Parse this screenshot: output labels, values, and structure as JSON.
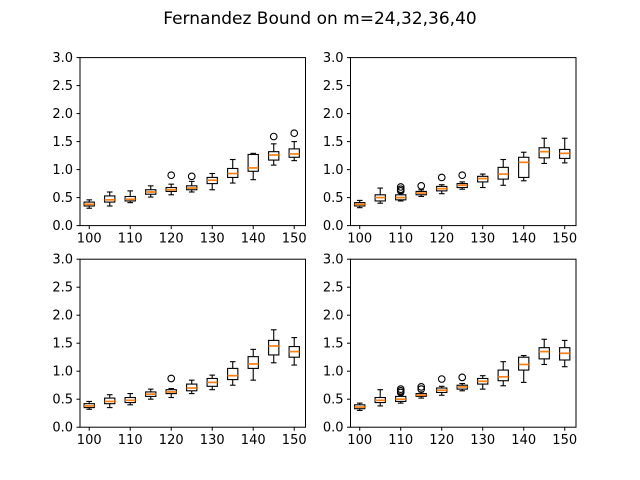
{
  "title": "Fernandez Bound on m=24,32,36,40",
  "colors": {
    "background": "#ffffff",
    "axes": "#000000",
    "box_edge": "#000000",
    "box_fill": "#ffffff",
    "median": "#ff7f0e",
    "flier_edge": "#000000"
  },
  "chart_data": [
    {
      "type": "boxplot",
      "subplot": "top-left",
      "m": 24,
      "xlim": [
        97.75,
        152.75
      ],
      "ylim": [
        0.0,
        3.0
      ],
      "x_ticks": [
        100,
        110,
        120,
        130,
        140,
        150
      ],
      "y_ticks": [
        0.0,
        0.5,
        1.0,
        1.5,
        2.0,
        2.5,
        3.0
      ],
      "box_width": 2.5,
      "boxes": [
        {
          "pos": 100,
          "whislo": 0.31,
          "q1": 0.35,
          "med": 0.38,
          "q3": 0.42,
          "whishi": 0.46,
          "fliers": []
        },
        {
          "pos": 105,
          "whislo": 0.35,
          "q1": 0.42,
          "med": 0.46,
          "q3": 0.53,
          "whishi": 0.6,
          "fliers": []
        },
        {
          "pos": 110,
          "whislo": 0.41,
          "q1": 0.44,
          "med": 0.47,
          "q3": 0.52,
          "whishi": 0.62,
          "fliers": []
        },
        {
          "pos": 115,
          "whislo": 0.51,
          "q1": 0.56,
          "med": 0.6,
          "q3": 0.64,
          "whishi": 0.71,
          "fliers": []
        },
        {
          "pos": 120,
          "whislo": 0.55,
          "q1": 0.61,
          "med": 0.64,
          "q3": 0.68,
          "whishi": 0.74,
          "fliers": [
            0.9
          ]
        },
        {
          "pos": 125,
          "whislo": 0.6,
          "q1": 0.64,
          "med": 0.67,
          "q3": 0.71,
          "whishi": 0.79,
          "fliers": [
            0.88
          ]
        },
        {
          "pos": 130,
          "whislo": 0.64,
          "q1": 0.75,
          "med": 0.81,
          "q3": 0.86,
          "whishi": 0.93,
          "fliers": []
        },
        {
          "pos": 135,
          "whislo": 0.76,
          "q1": 0.86,
          "med": 0.93,
          "q3": 1.02,
          "whishi": 1.18,
          "fliers": []
        },
        {
          "pos": 140,
          "whislo": 0.82,
          "q1": 0.97,
          "med": 1.03,
          "q3": 1.27,
          "whishi": 1.29,
          "fliers": []
        },
        {
          "pos": 145,
          "whislo": 1.08,
          "q1": 1.17,
          "med": 1.26,
          "q3": 1.32,
          "whishi": 1.46,
          "fliers": [
            1.59
          ]
        },
        {
          "pos": 150,
          "whislo": 1.16,
          "q1": 1.22,
          "med": 1.28,
          "q3": 1.37,
          "whishi": 1.5,
          "fliers": [
            1.65
          ]
        }
      ]
    },
    {
      "type": "boxplot",
      "subplot": "top-right",
      "m": 32,
      "xlim": [
        97.75,
        152.75
      ],
      "ylim": [
        0.0,
        3.0
      ],
      "x_ticks": [
        100,
        110,
        120,
        130,
        140,
        150
      ],
      "y_ticks": [
        0.0,
        0.5,
        1.0,
        1.5,
        2.0,
        2.5,
        3.0
      ],
      "box_width": 2.5,
      "boxes": [
        {
          "pos": 100,
          "whislo": 0.32,
          "q1": 0.35,
          "med": 0.38,
          "q3": 0.41,
          "whishi": 0.45,
          "fliers": []
        },
        {
          "pos": 105,
          "whislo": 0.4,
          "q1": 0.44,
          "med": 0.5,
          "q3": 0.55,
          "whishi": 0.67,
          "fliers": []
        },
        {
          "pos": 110,
          "whislo": 0.44,
          "q1": 0.46,
          "med": 0.5,
          "q3": 0.55,
          "whishi": 0.58,
          "fliers": [
            0.62,
            0.65,
            0.69
          ]
        },
        {
          "pos": 115,
          "whislo": 0.52,
          "q1": 0.55,
          "med": 0.58,
          "q3": 0.61,
          "whishi": 0.64,
          "fliers": [
            0.71
          ]
        },
        {
          "pos": 120,
          "whislo": 0.57,
          "q1": 0.62,
          "med": 0.66,
          "q3": 0.7,
          "whishi": 0.73,
          "fliers": [
            0.86
          ]
        },
        {
          "pos": 125,
          "whislo": 0.65,
          "q1": 0.68,
          "med": 0.72,
          "q3": 0.75,
          "whishi": 0.78,
          "fliers": [
            0.9
          ]
        },
        {
          "pos": 130,
          "whislo": 0.68,
          "q1": 0.78,
          "med": 0.84,
          "q3": 0.88,
          "whishi": 0.92,
          "fliers": []
        },
        {
          "pos": 135,
          "whislo": 0.72,
          "q1": 0.83,
          "med": 0.92,
          "q3": 1.04,
          "whishi": 1.18,
          "fliers": []
        },
        {
          "pos": 140,
          "whislo": 0.8,
          "q1": 0.86,
          "med": 1.13,
          "q3": 1.22,
          "whishi": 1.31,
          "fliers": []
        },
        {
          "pos": 145,
          "whislo": 1.11,
          "q1": 1.21,
          "med": 1.32,
          "q3": 1.39,
          "whishi": 1.56,
          "fliers": []
        },
        {
          "pos": 150,
          "whislo": 1.12,
          "q1": 1.2,
          "med": 1.29,
          "q3": 1.36,
          "whishi": 1.56,
          "fliers": []
        }
      ]
    },
    {
      "type": "boxplot",
      "subplot": "bottom-left",
      "m": 36,
      "xlim": [
        97.75,
        152.75
      ],
      "ylim": [
        0.0,
        3.0
      ],
      "x_ticks": [
        100,
        110,
        120,
        130,
        140,
        150
      ],
      "y_ticks": [
        0.0,
        0.5,
        1.0,
        1.5,
        2.0,
        2.5,
        3.0
      ],
      "box_width": 2.5,
      "boxes": [
        {
          "pos": 100,
          "whislo": 0.32,
          "q1": 0.35,
          "med": 0.38,
          "q3": 0.42,
          "whishi": 0.46,
          "fliers": []
        },
        {
          "pos": 105,
          "whislo": 0.35,
          "q1": 0.42,
          "med": 0.46,
          "q3": 0.52,
          "whishi": 0.58,
          "fliers": []
        },
        {
          "pos": 110,
          "whislo": 0.4,
          "q1": 0.44,
          "med": 0.48,
          "q3": 0.53,
          "whishi": 0.6,
          "fliers": []
        },
        {
          "pos": 115,
          "whislo": 0.5,
          "q1": 0.55,
          "med": 0.59,
          "q3": 0.63,
          "whishi": 0.68,
          "fliers": []
        },
        {
          "pos": 120,
          "whislo": 0.53,
          "q1": 0.6,
          "med": 0.63,
          "q3": 0.67,
          "whishi": 0.69,
          "fliers": [
            0.87
          ]
        },
        {
          "pos": 125,
          "whislo": 0.6,
          "q1": 0.65,
          "med": 0.7,
          "q3": 0.77,
          "whishi": 0.84,
          "fliers": []
        },
        {
          "pos": 130,
          "whislo": 0.67,
          "q1": 0.73,
          "med": 0.8,
          "q3": 0.87,
          "whishi": 0.93,
          "fliers": []
        },
        {
          "pos": 135,
          "whislo": 0.75,
          "q1": 0.85,
          "med": 0.92,
          "q3": 1.05,
          "whishi": 1.17,
          "fliers": []
        },
        {
          "pos": 140,
          "whislo": 0.84,
          "q1": 1.05,
          "med": 1.13,
          "q3": 1.26,
          "whishi": 1.39,
          "fliers": []
        },
        {
          "pos": 145,
          "whislo": 1.15,
          "q1": 1.29,
          "med": 1.45,
          "q3": 1.55,
          "whishi": 1.74,
          "fliers": []
        },
        {
          "pos": 150,
          "whislo": 1.11,
          "q1": 1.25,
          "med": 1.35,
          "q3": 1.44,
          "whishi": 1.6,
          "fliers": []
        }
      ]
    },
    {
      "type": "boxplot",
      "subplot": "bottom-right",
      "m": 40,
      "xlim": [
        97.75,
        152.75
      ],
      "ylim": [
        0.0,
        3.0
      ],
      "x_ticks": [
        100,
        110,
        120,
        130,
        140,
        150
      ],
      "y_ticks": [
        0.0,
        0.5,
        1.0,
        1.5,
        2.0,
        2.5,
        3.0
      ],
      "box_width": 2.5,
      "boxes": [
        {
          "pos": 100,
          "whislo": 0.3,
          "q1": 0.33,
          "med": 0.36,
          "q3": 0.4,
          "whishi": 0.43,
          "fliers": []
        },
        {
          "pos": 105,
          "whislo": 0.38,
          "q1": 0.44,
          "med": 0.48,
          "q3": 0.53,
          "whishi": 0.67,
          "fliers": []
        },
        {
          "pos": 110,
          "whislo": 0.43,
          "q1": 0.46,
          "med": 0.5,
          "q3": 0.55,
          "whishi": 0.58,
          "fliers": [
            0.62,
            0.65,
            0.68
          ]
        },
        {
          "pos": 115,
          "whislo": 0.52,
          "q1": 0.55,
          "med": 0.57,
          "q3": 0.6,
          "whishi": 0.63,
          "fliers": [
            0.68,
            0.72
          ]
        },
        {
          "pos": 120,
          "whislo": 0.57,
          "q1": 0.62,
          "med": 0.66,
          "q3": 0.7,
          "whishi": 0.73,
          "fliers": [
            0.86
          ]
        },
        {
          "pos": 125,
          "whislo": 0.65,
          "q1": 0.68,
          "med": 0.72,
          "q3": 0.75,
          "whishi": 0.78,
          "fliers": [
            0.89
          ]
        },
        {
          "pos": 130,
          "whislo": 0.68,
          "q1": 0.77,
          "med": 0.82,
          "q3": 0.87,
          "whishi": 0.92,
          "fliers": []
        },
        {
          "pos": 135,
          "whislo": 0.74,
          "q1": 0.83,
          "med": 0.9,
          "q3": 1.02,
          "whishi": 1.17,
          "fliers": []
        },
        {
          "pos": 140,
          "whislo": 0.8,
          "q1": 1.02,
          "med": 1.12,
          "q3": 1.25,
          "whishi": 1.28,
          "fliers": []
        },
        {
          "pos": 145,
          "whislo": 1.12,
          "q1": 1.22,
          "med": 1.35,
          "q3": 1.42,
          "whishi": 1.57,
          "fliers": []
        },
        {
          "pos": 150,
          "whislo": 1.08,
          "q1": 1.2,
          "med": 1.32,
          "q3": 1.42,
          "whishi": 1.55,
          "fliers": []
        }
      ]
    }
  ]
}
